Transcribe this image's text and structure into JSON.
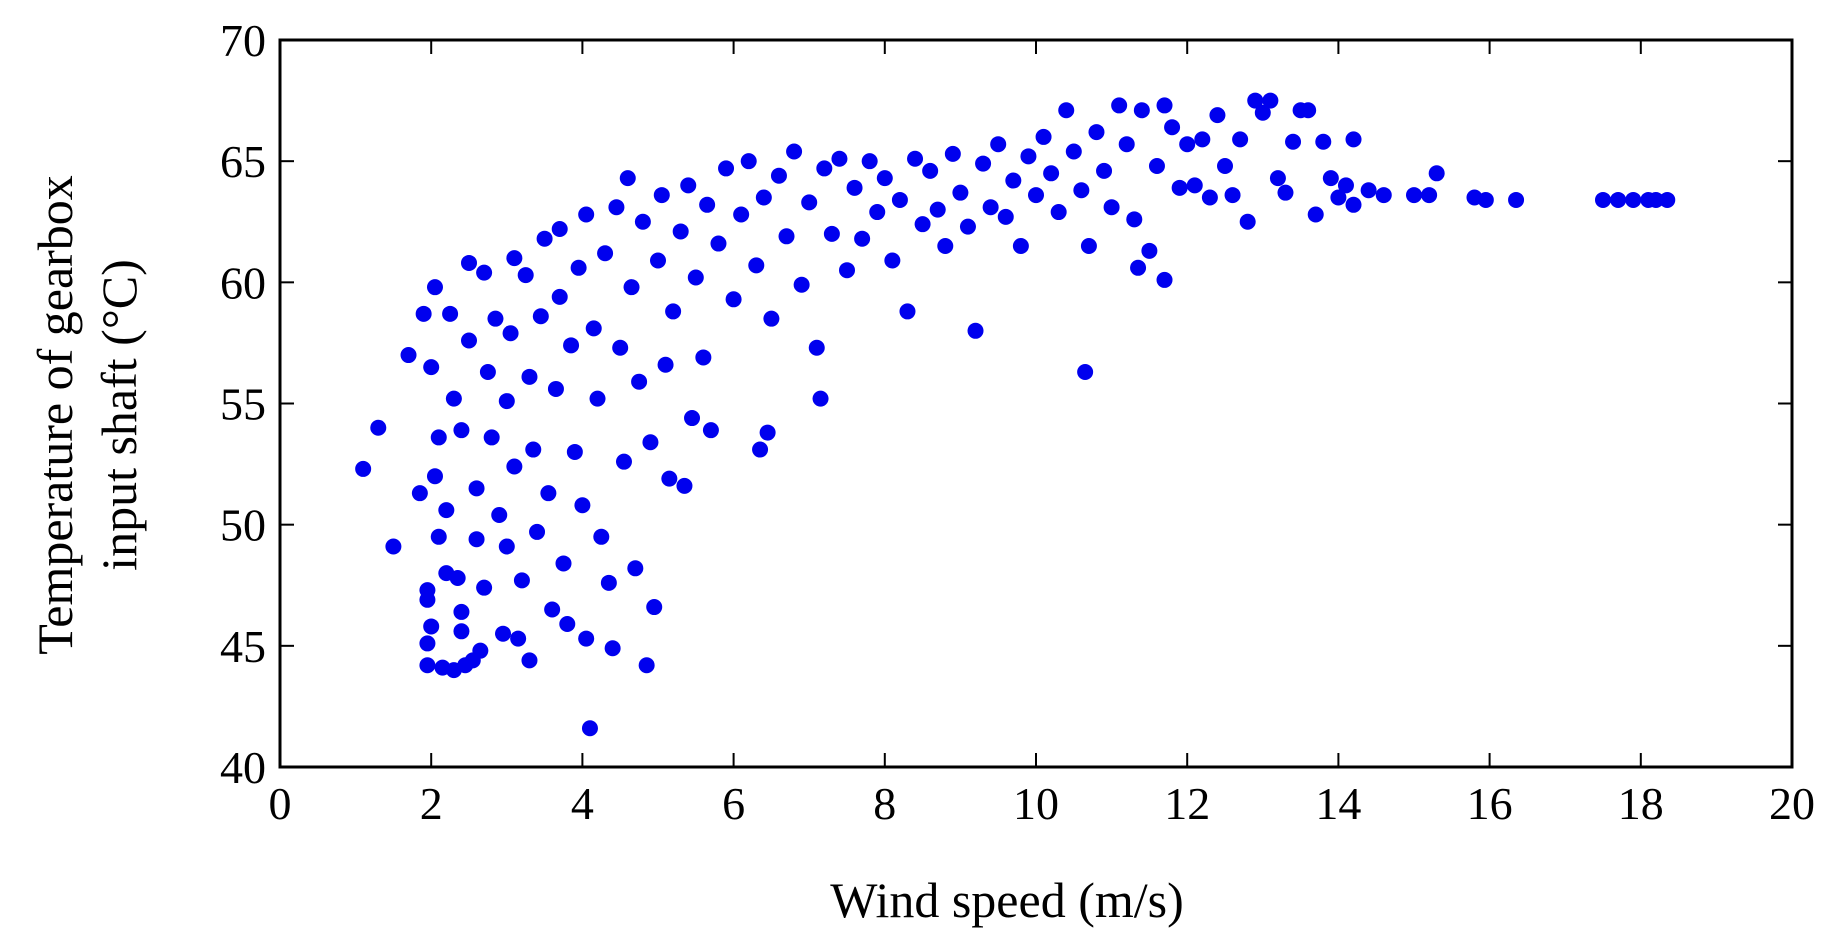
{
  "chart_data": {
    "type": "scatter",
    "xlabel": "Wind speed (m/s)",
    "ylabel_line1": "Temperature of gearbox",
    "ylabel_line2": "input shaft (°C)",
    "xlim": [
      0,
      20
    ],
    "ylim": [
      40,
      70
    ],
    "xticks": [
      0,
      2,
      4,
      6,
      8,
      10,
      12,
      14,
      16,
      18,
      20
    ],
    "yticks": [
      40,
      45,
      50,
      55,
      60,
      65,
      70
    ],
    "grid": false,
    "legend": "none",
    "marker_color": "#0000ee",
    "series": [
      {
        "points": [
          [
            1.1,
            52.3
          ],
          [
            1.3,
            54.0
          ],
          [
            1.5,
            49.1
          ],
          [
            1.7,
            57.0
          ],
          [
            1.85,
            51.3
          ],
          [
            1.9,
            58.7
          ],
          [
            1.95,
            44.2
          ],
          [
            1.95,
            45.1
          ],
          [
            2.0,
            45.8
          ],
          [
            1.95,
            46.9
          ],
          [
            1.95,
            47.3
          ],
          [
            2.0,
            56.5
          ],
          [
            2.05,
            59.8
          ],
          [
            2.05,
            52.0
          ],
          [
            2.1,
            49.5
          ],
          [
            2.1,
            53.6
          ],
          [
            2.15,
            44.1
          ],
          [
            2.2,
            48.0
          ],
          [
            2.2,
            50.6
          ],
          [
            2.25,
            58.7
          ],
          [
            2.3,
            55.2
          ],
          [
            2.3,
            44.0
          ],
          [
            2.35,
            47.8
          ],
          [
            2.4,
            45.6
          ],
          [
            2.4,
            46.4
          ],
          [
            2.4,
            53.9
          ],
          [
            2.45,
            44.2
          ],
          [
            2.5,
            60.8
          ],
          [
            2.5,
            57.6
          ],
          [
            2.55,
            44.4
          ],
          [
            2.6,
            49.4
          ],
          [
            2.6,
            51.5
          ],
          [
            2.65,
            44.8
          ],
          [
            2.7,
            47.4
          ],
          [
            2.7,
            60.4
          ],
          [
            2.75,
            56.3
          ],
          [
            2.8,
            53.6
          ],
          [
            2.85,
            58.5
          ],
          [
            2.9,
            50.4
          ],
          [
            2.95,
            45.5
          ],
          [
            3.0,
            49.1
          ],
          [
            3.0,
            55.1
          ],
          [
            3.05,
            57.9
          ],
          [
            3.1,
            61.0
          ],
          [
            3.1,
            52.4
          ],
          [
            3.15,
            45.3
          ],
          [
            3.2,
            47.7
          ],
          [
            3.25,
            60.3
          ],
          [
            3.3,
            56.1
          ],
          [
            3.3,
            44.4
          ],
          [
            3.35,
            53.1
          ],
          [
            3.4,
            49.7
          ],
          [
            3.45,
            58.6
          ],
          [
            3.5,
            61.8
          ],
          [
            3.55,
            51.3
          ],
          [
            3.6,
            46.5
          ],
          [
            3.65,
            55.6
          ],
          [
            3.7,
            59.4
          ],
          [
            3.7,
            62.2
          ],
          [
            3.75,
            48.4
          ],
          [
            3.8,
            45.9
          ],
          [
            3.85,
            57.4
          ],
          [
            3.9,
            53.0
          ],
          [
            3.95,
            60.6
          ],
          [
            4.0,
            50.8
          ],
          [
            4.05,
            62.8
          ],
          [
            4.05,
            45.3
          ],
          [
            4.1,
            41.6
          ],
          [
            4.15,
            58.1
          ],
          [
            4.2,
            55.2
          ],
          [
            4.25,
            49.5
          ],
          [
            4.3,
            61.2
          ],
          [
            4.35,
            47.6
          ],
          [
            4.4,
            44.9
          ],
          [
            4.45,
            63.1
          ],
          [
            4.5,
            57.3
          ],
          [
            4.55,
            52.6
          ],
          [
            4.6,
            64.3
          ],
          [
            4.65,
            59.8
          ],
          [
            4.7,
            48.2
          ],
          [
            4.75,
            55.9
          ],
          [
            4.8,
            62.5
          ],
          [
            4.85,
            44.2
          ],
          [
            4.9,
            53.4
          ],
          [
            4.95,
            46.6
          ],
          [
            5.0,
            60.9
          ],
          [
            5.05,
            63.6
          ],
          [
            5.1,
            56.6
          ],
          [
            5.15,
            51.9
          ],
          [
            5.2,
            58.8
          ],
          [
            5.3,
            62.1
          ],
          [
            5.35,
            51.6
          ],
          [
            5.4,
            64.0
          ],
          [
            5.45,
            54.4
          ],
          [
            5.5,
            60.2
          ],
          [
            5.6,
            56.9
          ],
          [
            5.65,
            63.2
          ],
          [
            5.7,
            53.9
          ],
          [
            5.8,
            61.6
          ],
          [
            5.9,
            64.7
          ],
          [
            6.0,
            59.3
          ],
          [
            6.1,
            62.8
          ],
          [
            6.2,
            65.0
          ],
          [
            6.3,
            60.7
          ],
          [
            6.35,
            53.1
          ],
          [
            6.4,
            63.5
          ],
          [
            6.45,
            53.8
          ],
          [
            6.5,
            58.5
          ],
          [
            6.6,
            64.4
          ],
          [
            6.7,
            61.9
          ],
          [
            6.8,
            65.4
          ],
          [
            6.9,
            59.9
          ],
          [
            7.0,
            63.3
          ],
          [
            7.1,
            57.3
          ],
          [
            7.15,
            55.2
          ],
          [
            7.2,
            64.7
          ],
          [
            7.3,
            62.0
          ],
          [
            7.4,
            65.1
          ],
          [
            7.5,
            60.5
          ],
          [
            7.6,
            63.9
          ],
          [
            7.7,
            61.8
          ],
          [
            7.8,
            65.0
          ],
          [
            7.9,
            62.9
          ],
          [
            8.0,
            64.3
          ],
          [
            8.1,
            60.9
          ],
          [
            8.2,
            63.4
          ],
          [
            8.3,
            58.8
          ],
          [
            8.4,
            65.1
          ],
          [
            8.5,
            62.4
          ],
          [
            8.6,
            64.6
          ],
          [
            8.7,
            63.0
          ],
          [
            8.8,
            61.5
          ],
          [
            8.9,
            65.3
          ],
          [
            9.0,
            63.7
          ],
          [
            9.1,
            62.3
          ],
          [
            9.2,
            58.0
          ],
          [
            9.3,
            64.9
          ],
          [
            9.4,
            63.1
          ],
          [
            9.5,
            65.7
          ],
          [
            9.6,
            62.7
          ],
          [
            9.7,
            64.2
          ],
          [
            9.8,
            61.5
          ],
          [
            9.9,
            65.2
          ],
          [
            10.0,
            63.6
          ],
          [
            10.1,
            66.0
          ],
          [
            10.2,
            64.5
          ],
          [
            10.3,
            62.9
          ],
          [
            10.4,
            67.1
          ],
          [
            10.5,
            65.4
          ],
          [
            10.6,
            63.8
          ],
          [
            10.65,
            56.3
          ],
          [
            10.7,
            61.5
          ],
          [
            10.8,
            66.2
          ],
          [
            10.9,
            64.6
          ],
          [
            11.0,
            63.1
          ],
          [
            11.1,
            67.3
          ],
          [
            11.2,
            65.7
          ],
          [
            11.3,
            62.6
          ],
          [
            11.35,
            60.6
          ],
          [
            11.4,
            67.1
          ],
          [
            11.5,
            61.3
          ],
          [
            11.6,
            64.8
          ],
          [
            11.7,
            60.1
          ],
          [
            11.7,
            67.3
          ],
          [
            11.8,
            66.4
          ],
          [
            11.9,
            63.9
          ],
          [
            12.0,
            65.7
          ],
          [
            12.1,
            64.0
          ],
          [
            12.2,
            65.9
          ],
          [
            12.3,
            63.5
          ],
          [
            12.4,
            66.9
          ],
          [
            12.5,
            64.8
          ],
          [
            12.6,
            63.6
          ],
          [
            12.7,
            65.9
          ],
          [
            12.8,
            62.5
          ],
          [
            12.9,
            67.5
          ],
          [
            13.0,
            67.0
          ],
          [
            13.1,
            67.5
          ],
          [
            13.2,
            64.3
          ],
          [
            13.3,
            63.7
          ],
          [
            13.4,
            65.8
          ],
          [
            13.5,
            67.1
          ],
          [
            13.6,
            67.1
          ],
          [
            13.7,
            62.8
          ],
          [
            13.8,
            65.8
          ],
          [
            13.9,
            64.3
          ],
          [
            14.0,
            63.5
          ],
          [
            14.1,
            64.0
          ],
          [
            14.2,
            65.9
          ],
          [
            14.2,
            63.2
          ],
          [
            14.4,
            63.8
          ],
          [
            14.6,
            63.6
          ],
          [
            15.0,
            63.6
          ],
          [
            15.2,
            63.6
          ],
          [
            15.3,
            64.5
          ],
          [
            15.8,
            63.5
          ],
          [
            15.95,
            63.4
          ],
          [
            16.35,
            63.4
          ],
          [
            17.5,
            63.4
          ],
          [
            17.7,
            63.4
          ],
          [
            17.9,
            63.4
          ],
          [
            18.1,
            63.4
          ],
          [
            18.2,
            63.4
          ],
          [
            18.35,
            63.4
          ]
        ]
      }
    ]
  }
}
